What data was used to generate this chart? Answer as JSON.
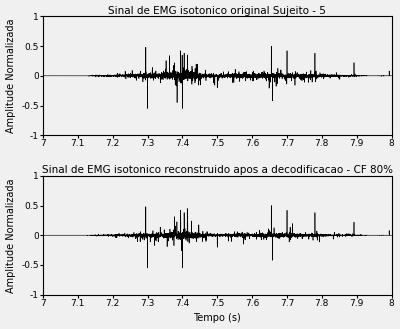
{
  "title1": "Sinal de EMG isotonico original Sujeito - 5",
  "title2": "Sinal de EMG isotonico reconstruido apos a decodificacao - CF 80%",
  "xlabel": "Tempo (s)",
  "ylabel": "Amplitude Normalizada",
  "xlim": [
    7.0,
    8.0
  ],
  "ylim": [
    -1.0,
    1.0
  ],
  "xticks": [
    7.0,
    7.1,
    7.2,
    7.3,
    7.4,
    7.5,
    7.6,
    7.7,
    7.8,
    7.9,
    8.0
  ],
  "yticks": [
    -1.0,
    -0.5,
    0.0,
    0.5,
    1.0
  ],
  "line_color": "#000000",
  "bg_color": "#f0f0f0",
  "line_width": 0.45,
  "seed": 42,
  "n_samples": 4000,
  "title_fontsize": 7.5,
  "label_fontsize": 7,
  "tick_fontsize": 6.5
}
